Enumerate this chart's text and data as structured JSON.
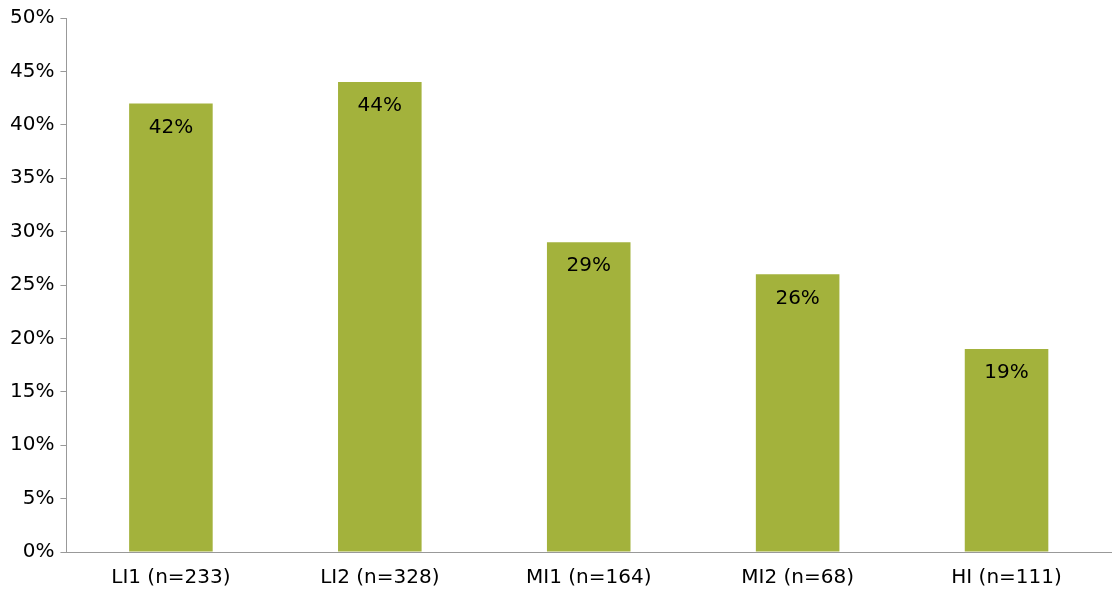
{
  "chart_data": {
    "type": "bar",
    "categories": [
      "LI1 (n=233)",
      "LI2 (n=328)",
      "MI1 (n=164)",
      "MI2 (n=68)",
      "HI (n=111)"
    ],
    "values": [
      42,
      44,
      29,
      26,
      19
    ],
    "color": "#a3b23c",
    "data_labels": true,
    "value_labels": [
      "42%",
      "44%",
      "29%",
      "26%",
      "19%"
    ],
    "ylim": [
      0,
      50
    ],
    "yticks": [
      {
        "value": 0,
        "label": "0%"
      },
      {
        "value": 5,
        "label": "5%"
      },
      {
        "value": 10,
        "label": "10%"
      },
      {
        "value": 15,
        "label": "15%"
      },
      {
        "value": 20,
        "label": "20%"
      },
      {
        "value": 25,
        "label": "25%"
      },
      {
        "value": 30,
        "label": "30%"
      },
      {
        "value": 35,
        "label": "35%"
      },
      {
        "value": 40,
        "label": "40%"
      },
      {
        "value": 45,
        "label": "45%"
      },
      {
        "value": 50,
        "label": "50%"
      }
    ],
    "grid": false,
    "legend": false
  }
}
